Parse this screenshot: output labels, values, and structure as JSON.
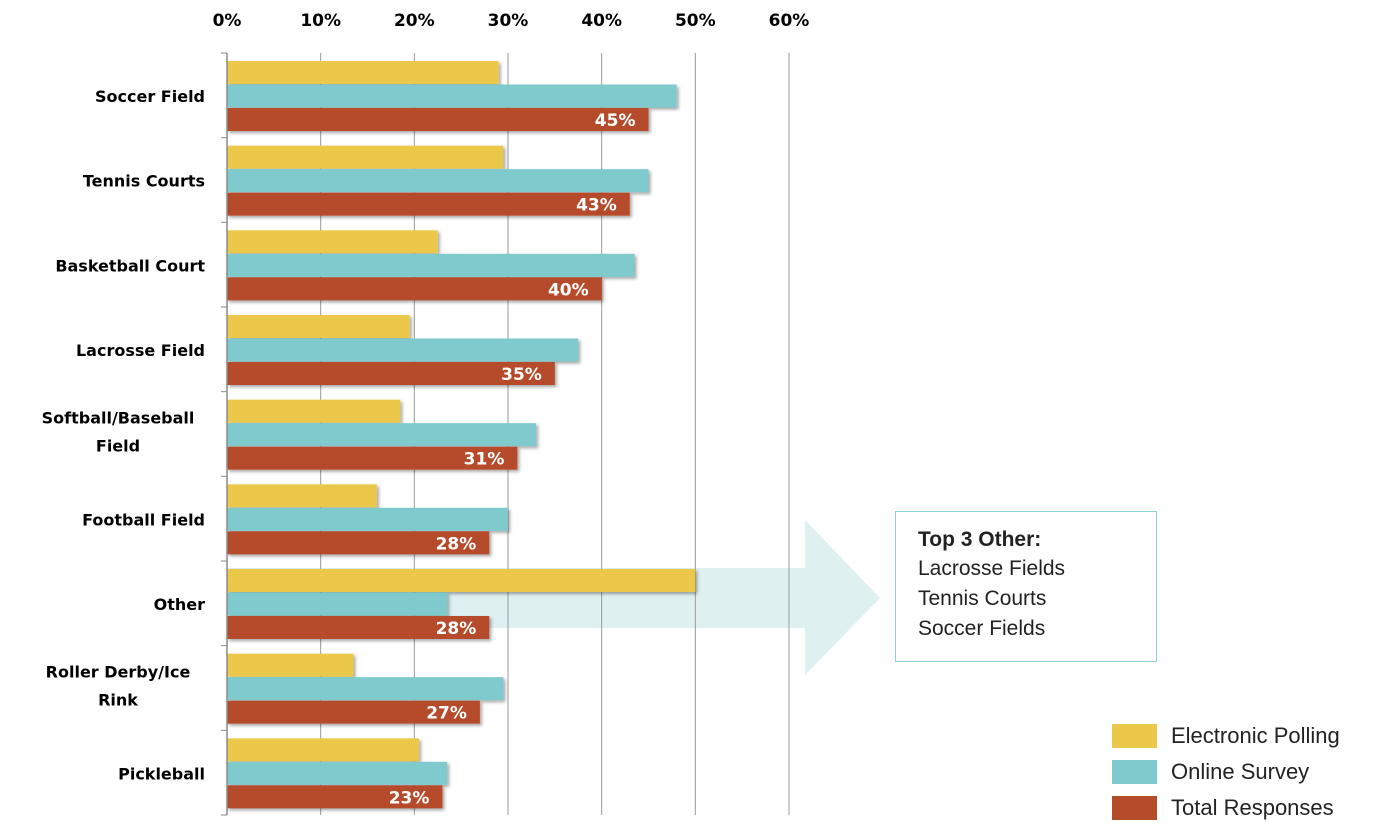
{
  "chart_data": {
    "type": "bar",
    "orientation": "horizontal",
    "categories": [
      "Soccer Field",
      "Tennis Courts",
      "Basketball Court",
      "Lacrosse Field",
      "Softball/Baseball Field",
      "Football Field",
      "Other",
      "Roller Derby/Ice Rink",
      "Pickleball"
    ],
    "series": [
      {
        "name": "Electronic Polling",
        "color": "#ebc84a",
        "values": [
          29,
          29.5,
          22.5,
          19.5,
          18.5,
          16,
          50,
          13.5,
          20.5
        ]
      },
      {
        "name": "Online Survey",
        "color": "#7ecacc",
        "values": [
          48,
          45,
          43.5,
          37.5,
          33,
          30,
          23.5,
          29.5,
          23.5
        ]
      },
      {
        "name": "Total Responses",
        "color": "#b54c29",
        "values": [
          45,
          43,
          40,
          35,
          31,
          28,
          28,
          27,
          23
        ]
      }
    ],
    "data_labels": [
      "45%",
      "43%",
      "40%",
      "35%",
      "31%",
      "28%",
      "28%",
      "27%",
      "23%"
    ],
    "xticks": [
      "0%",
      "10%",
      "20%",
      "30%",
      "40%",
      "50%",
      "60%"
    ],
    "xlim": [
      0,
      60
    ],
    "grid": true,
    "legend_position": "bottom-right"
  },
  "callout": {
    "title": "Top 3 Other:",
    "items": [
      "Lacrosse Fields",
      "Tennis Courts",
      "Soccer Fields"
    ],
    "arrow_color": "#dff0f1"
  },
  "legend": [
    {
      "label": "Electronic Polling",
      "color": "#ebc84a"
    },
    {
      "label": "Online Survey",
      "color": "#7ecacc"
    },
    {
      "label": "Total Responses",
      "color": "#b54c29"
    }
  ]
}
